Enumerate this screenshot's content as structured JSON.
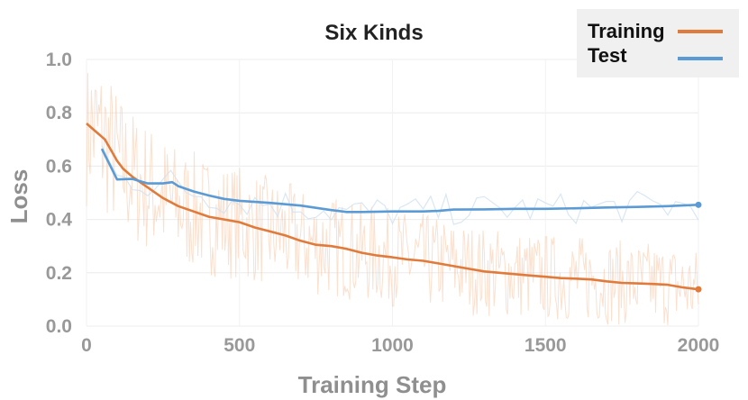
{
  "chart_data": {
    "type": "line",
    "title": "Six Kinds",
    "xlabel": "Training Step",
    "ylabel": "Loss",
    "xlim": [
      0,
      2000
    ],
    "ylim": [
      0,
      1.0
    ],
    "x_ticks": [
      "0",
      "500",
      "1000",
      "1500",
      "2000"
    ],
    "y_ticks": [
      "0.0",
      "0.2",
      "0.4",
      "0.6",
      "0.8",
      "1.0"
    ],
    "grid": true,
    "legend_position": "top-right",
    "series": [
      {
        "name": "Training",
        "color": "#e07b3c",
        "x": [
          0,
          20,
          40,
          60,
          80,
          100,
          120,
          150,
          200,
          250,
          300,
          350,
          400,
          450,
          500,
          550,
          600,
          650,
          700,
          750,
          800,
          850,
          900,
          950,
          1000,
          1050,
          1100,
          1150,
          1200,
          1250,
          1300,
          1350,
          1400,
          1450,
          1500,
          1550,
          1600,
          1650,
          1700,
          1750,
          1800,
          1850,
          1900,
          1950,
          2000
        ],
        "values": [
          0.76,
          0.74,
          0.72,
          0.7,
          0.66,
          0.62,
          0.59,
          0.56,
          0.52,
          0.48,
          0.45,
          0.43,
          0.41,
          0.4,
          0.39,
          0.37,
          0.355,
          0.34,
          0.32,
          0.305,
          0.3,
          0.29,
          0.275,
          0.265,
          0.258,
          0.25,
          0.245,
          0.235,
          0.225,
          0.215,
          0.205,
          0.2,
          0.195,
          0.19,
          0.185,
          0.18,
          0.178,
          0.175,
          0.168,
          0.162,
          0.16,
          0.158,
          0.155,
          0.145,
          0.138
        ]
      },
      {
        "name": "Test",
        "color": "#5b9bd5",
        "x": [
          50,
          100,
          150,
          200,
          250,
          280,
          300,
          350,
          400,
          450,
          500,
          600,
          700,
          800,
          850,
          900,
          1000,
          1100,
          1150,
          1200,
          1300,
          1400,
          1500,
          1600,
          1700,
          1800,
          1900,
          2000
        ],
        "values": [
          0.665,
          0.55,
          0.552,
          0.535,
          0.535,
          0.54,
          0.525,
          0.505,
          0.49,
          0.477,
          0.47,
          0.462,
          0.452,
          0.435,
          0.428,
          0.428,
          0.43,
          0.43,
          0.432,
          0.437,
          0.438,
          0.44,
          0.44,
          0.442,
          0.445,
          0.447,
          0.45,
          0.455
        ]
      }
    ]
  }
}
